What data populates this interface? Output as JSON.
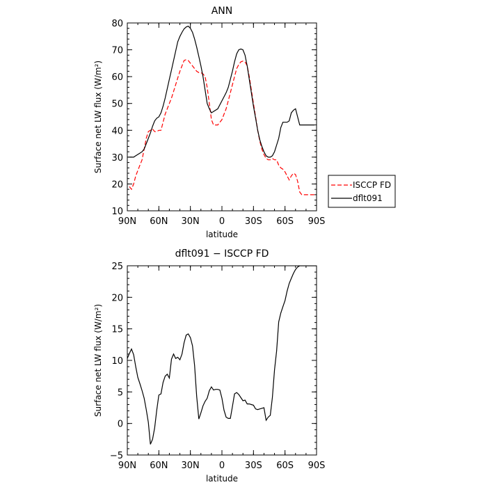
{
  "chart_data": [
    {
      "type": "line",
      "title": "ANN",
      "xlabel": "latitude",
      "ylabel": "Surface net LW flux (W/m²)",
      "xlim": [
        -90,
        90
      ],
      "ylim": [
        10,
        80
      ],
      "x_ticks": [
        -90,
        -60,
        -30,
        0,
        30,
        60,
        90
      ],
      "x_tick_labels": [
        "90N",
        "60N",
        "30N",
        "0",
        "30S",
        "60S",
        "90S"
      ],
      "y_ticks": [
        10,
        20,
        30,
        40,
        50,
        60,
        70,
        80
      ],
      "y_tick_labels": [
        "10",
        "20",
        "30",
        "40",
        "50",
        "60",
        "70",
        "80"
      ],
      "legend_position": "right",
      "series": [
        {
          "name": "ISCCP FD",
          "color": "#ff0000",
          "style": "dashed",
          "x": [
            -88,
            -86,
            -84,
            -82,
            -80,
            -78,
            -76,
            -74,
            -72,
            -70,
            -68,
            -66,
            -64,
            -62,
            -60,
            -58,
            -56,
            -54,
            -52,
            -50,
            -48,
            -46,
            -44,
            -42,
            -40,
            -38,
            -36,
            -34,
            -32,
            -30,
            -28,
            -26,
            -24,
            -22,
            -20,
            -18,
            -16,
            -14,
            -12,
            -10,
            -8,
            -6,
            -4,
            -2,
            0,
            2,
            4,
            6,
            8,
            10,
            12,
            14,
            16,
            18,
            20,
            22,
            24,
            26,
            28,
            30,
            32,
            34,
            36,
            38,
            40,
            42,
            44,
            46,
            48,
            50,
            52,
            54,
            56,
            58,
            60,
            62,
            64,
            66,
            68,
            70,
            72,
            74,
            76,
            78,
            80,
            82,
            84,
            86,
            88
          ],
          "y": [
            19.0,
            18.0,
            20.0,
            23.0,
            25.0,
            27.0,
            29.0,
            33.0,
            37.0,
            39.5,
            40.0,
            40.5,
            39.5,
            39.5,
            40.0,
            40.0,
            43.0,
            46.0,
            48.0,
            50.0,
            52.0,
            54.5,
            57.0,
            59.5,
            62.0,
            64.0,
            66.0,
            66.3,
            66.0,
            65.0,
            64.0,
            63.0,
            62.0,
            61.5,
            61.5,
            61.0,
            60.0,
            56.0,
            50.0,
            44.0,
            42.0,
            42.0,
            42.0,
            43.0,
            44.0,
            46.0,
            48.0,
            51.0,
            54.0,
            57.0,
            60.0,
            63.0,
            64.5,
            65.5,
            65.8,
            65.5,
            64.0,
            60.0,
            55.0,
            50.0,
            45.0,
            40.0,
            36.0,
            33.0,
            31.0,
            29.5,
            29.0,
            29.0,
            29.5,
            29.0,
            29.0,
            27.0,
            26.0,
            25.5,
            24.5,
            23.0,
            21.5,
            23.0,
            24.0,
            23.5,
            21.0,
            17.0,
            16.0,
            16.0,
            16.0,
            16.0,
            16.0,
            16.0,
            16.0
          ]
        },
        {
          "name": "dflt091",
          "color": "#000000",
          "style": "solid",
          "x": [
            -88,
            -86,
            -84,
            -82,
            -80,
            -78,
            -76,
            -74,
            -72,
            -70,
            -68,
            -66,
            -64,
            -62,
            -60,
            -58,
            -56,
            -54,
            -52,
            -50,
            -48,
            -46,
            -44,
            -42,
            -40,
            -38,
            -36,
            -34,
            -32,
            -30,
            -28,
            -26,
            -24,
            -22,
            -20,
            -18,
            -16,
            -14,
            -12,
            -10,
            -8,
            -6,
            -4,
            -2,
            0,
            2,
            4,
            6,
            8,
            10,
            12,
            14,
            16,
            18,
            20,
            22,
            24,
            26,
            28,
            30,
            32,
            34,
            36,
            38,
            40,
            42,
            44,
            46,
            48,
            50,
            52,
            54,
            56,
            58,
            60,
            62,
            64,
            66,
            68,
            70,
            72,
            74,
            76,
            78,
            80,
            82,
            84,
            86,
            88
          ],
          "y": [
            30.0,
            30.0,
            30.0,
            30.5,
            31.0,
            31.5,
            32.0,
            33.0,
            35.0,
            37.0,
            39.0,
            41.5,
            43.5,
            44.5,
            45.0,
            46.5,
            49.0,
            52.0,
            55.5,
            59.0,
            62.5,
            66.0,
            69.5,
            73.0,
            75.0,
            76.5,
            77.8,
            78.5,
            78.8,
            78.0,
            76.5,
            74.0,
            71.0,
            67.5,
            64.0,
            60.0,
            55.0,
            50.0,
            48.0,
            46.5,
            47.0,
            47.5,
            48.0,
            49.5,
            51.0,
            52.5,
            54.0,
            56.0,
            59.0,
            62.0,
            65.5,
            68.5,
            70.0,
            70.3,
            70.0,
            68.0,
            64.0,
            59.0,
            54.0,
            49.0,
            44.5,
            40.0,
            36.5,
            34.0,
            32.0,
            30.5,
            30.0,
            30.0,
            30.5,
            32.0,
            34.5,
            37.0,
            41.0,
            43.0,
            43.0,
            43.0,
            43.5,
            46.5,
            47.5,
            48.0,
            45.0,
            42.0,
            42.0,
            42.0,
            42.0,
            42.0,
            42.0,
            42.0,
            42.0
          ]
        }
      ]
    },
    {
      "type": "line",
      "title": "dflt091 − ISCCP FD",
      "xlabel": "latitude",
      "ylabel": "Surface net LW flux (W/m²)",
      "xlim": [
        -90,
        90
      ],
      "ylim": [
        -5,
        25
      ],
      "x_ticks": [
        -90,
        -60,
        -30,
        0,
        30,
        60,
        90
      ],
      "x_tick_labels": [
        "90N",
        "60N",
        "30N",
        "0",
        "30S",
        "60S",
        "90S"
      ],
      "y_ticks": [
        -5,
        0,
        5,
        10,
        15,
        20,
        25
      ],
      "y_tick_labels": [
        "−5",
        "0",
        "5",
        "10",
        "15",
        "20",
        "25"
      ],
      "series": [
        {
          "color": "#000000",
          "style": "solid",
          "x": [
            -90,
            -88,
            -86,
            -84,
            -82,
            -80,
            -78,
            -76,
            -74,
            -72,
            -70,
            -68,
            -66,
            -64,
            -62,
            -60,
            -58,
            -56,
            -54,
            -52,
            -50,
            -48,
            -46,
            -44,
            -42,
            -40,
            -38,
            -36,
            -34,
            -32,
            -30,
            -28,
            -26,
            -24,
            -22,
            -20,
            -18,
            -16,
            -14,
            -12,
            -10,
            -8,
            -6,
            -4,
            -2,
            0,
            2,
            4,
            6,
            8,
            10,
            12,
            14,
            16,
            18,
            20,
            22,
            24,
            26,
            28,
            30,
            32,
            34,
            36,
            38,
            40,
            42,
            44,
            46,
            48,
            50,
            52,
            54,
            56,
            58,
            60,
            62,
            64,
            66,
            68,
            70,
            72,
            74,
            76,
            78,
            80,
            82,
            84,
            86,
            88,
            90
          ],
          "y": [
            10.3,
            11.1,
            11.8,
            10.9,
            9.0,
            7.3,
            6.3,
            5.2,
            4.0,
            2.2,
            0.2,
            -3.3,
            -2.5,
            -0.7,
            2.1,
            4.5,
            4.7,
            6.5,
            7.5,
            7.8,
            7.2,
            10.2,
            11.0,
            10.3,
            10.5,
            10.1,
            11.0,
            12.8,
            14.0,
            14.2,
            13.6,
            12.3,
            9.2,
            4.3,
            0.7,
            1.7,
            2.8,
            3.5,
            4.0,
            5.2,
            5.8,
            5.3,
            5.4,
            5.4,
            5.3,
            4.0,
            2.1,
            1.0,
            0.8,
            0.8,
            2.7,
            4.7,
            4.9,
            4.6,
            4.1,
            3.6,
            3.7,
            3.1,
            3.1,
            3.0,
            2.9,
            2.3,
            2.2,
            2.3,
            2.4,
            2.5,
            0.5,
            1.0,
            1.3,
            4.1,
            8.5,
            11.5,
            16.1,
            17.5,
            18.5,
            19.5,
            21.0,
            22.2,
            23.0,
            23.8,
            24.4,
            24.8,
            25.0,
            25.0,
            25.0,
            25.0,
            25.0,
            25.0,
            25.0,
            25.0,
            25.0
          ]
        }
      ]
    }
  ]
}
